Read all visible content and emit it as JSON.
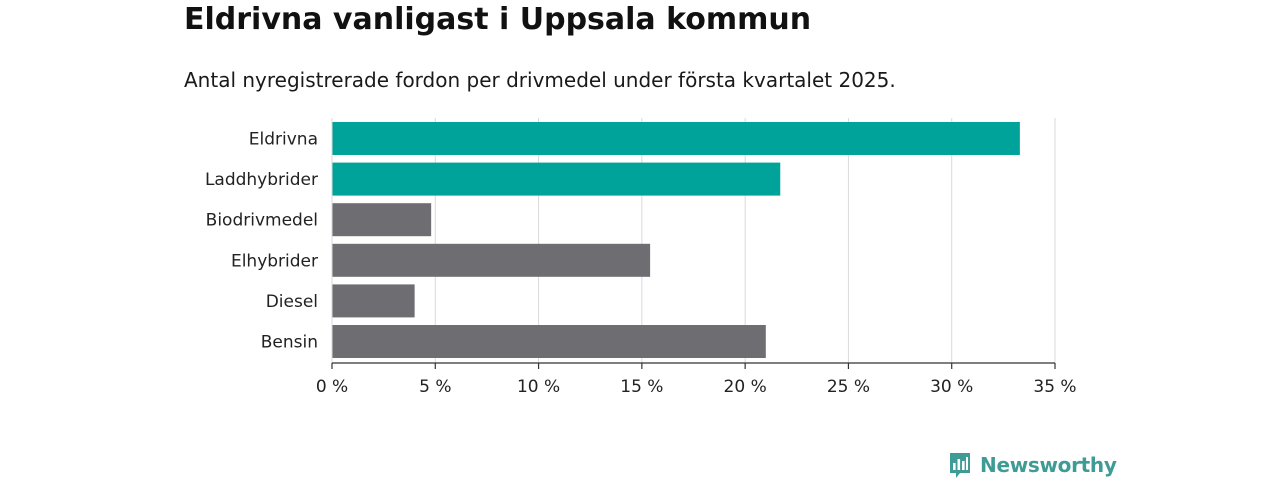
{
  "title": "Eldrivna vanligast i Uppsala kommun",
  "subtitle": "Antal nyregistrerade fordon per drivmedel under första kvartalet 2025.",
  "brand": {
    "name": "Newsworthy",
    "color": "#3e9b96",
    "icon": "newsworthy-logo-icon"
  },
  "colors": {
    "highlight": "#00a39a",
    "default": "#6e6d72",
    "grid": "#d9d9d9",
    "axis": "#333333"
  },
  "chart_data": {
    "type": "bar",
    "orientation": "horizontal",
    "categories": [
      "Eldrivna",
      "Laddhybrider",
      "Biodrivmedel",
      "Elhybrider",
      "Diesel",
      "Bensin"
    ],
    "values": [
      33.3,
      21.7,
      4.8,
      15.4,
      4.0,
      21.0
    ],
    "highlighted": [
      true,
      true,
      false,
      false,
      false,
      false
    ],
    "xlim": [
      0,
      35
    ],
    "xticks": [
      0,
      5,
      10,
      15,
      20,
      25,
      30,
      35
    ],
    "tick_labels": [
      "0 %",
      "5 %",
      "10 %",
      "15 %",
      "20 %",
      "25 %",
      "30 %",
      "35 %"
    ],
    "grid": true
  }
}
